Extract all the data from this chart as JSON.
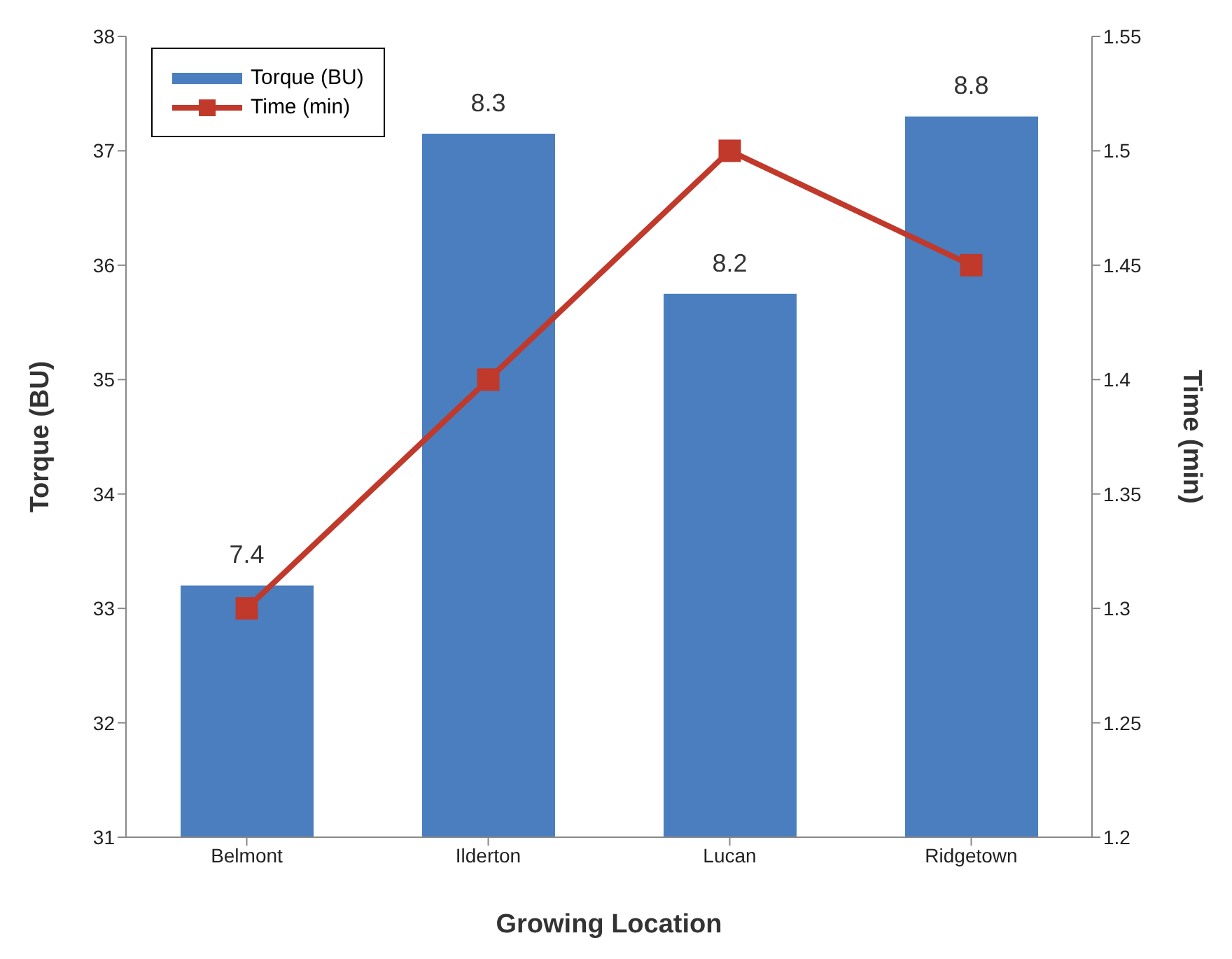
{
  "chart_data": {
    "type": "bar",
    "xlabel": "Growing Location",
    "ylabel": "Torque (BU)",
    "y2label": "Time (min)",
    "categories": [
      "Belmont",
      "Ilderton",
      "Lucan",
      "Ridgetown"
    ],
    "series": [
      {
        "name": "Torque (BU)",
        "color": "#4a7ebf",
        "values": [
          33.2,
          37.15,
          35.75,
          37.3
        ]
      },
      {
        "name": "Time (min)",
        "type": "line",
        "axis": "y2",
        "color": "#c0392b",
        "values": [
          1.3,
          1.4,
          1.5,
          1.45
        ],
        "marker": "square",
        "line_style": "solid"
      }
    ],
    "annotations": [
      {
        "text": "7.4",
        "x": "Belmont",
        "y": 33.2
      },
      {
        "text": "8.3",
        "x": "Ilderton",
        "y": 37.15
      },
      {
        "text": "8.2",
        "x": "Lucan",
        "y": 35.75
      },
      {
        "text": "8.8",
        "x": "Ridgetown",
        "y": 37.3
      }
    ],
    "ylim": [
      31,
      38
    ],
    "yticks": [
      31,
      32,
      33,
      34,
      35,
      36,
      37,
      38
    ],
    "y2lim": [
      1.2,
      1.55
    ],
    "y2ticks": [
      1.2,
      1.25,
      1.3,
      1.35,
      1.4,
      1.45,
      1.5,
      1.55
    ],
    "grid": false,
    "legend": "top left"
  }
}
